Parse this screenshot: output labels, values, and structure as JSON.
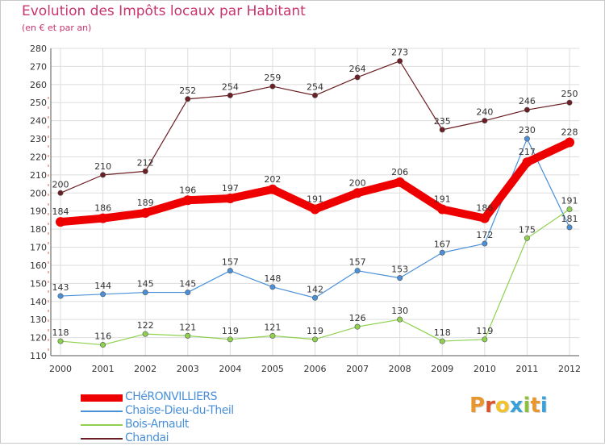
{
  "title": "Evolution des Impôts locaux par Habitant",
  "subtitle": "(en € et par an)",
  "logo": {
    "text": "Proxiti",
    "colors": [
      "#e8962e",
      "#d9532b",
      "#f2c12e",
      "#3aa1d8",
      "#8bbf3c",
      "#e8962e",
      "#3aa1d8"
    ]
  },
  "chart_data": {
    "type": "line",
    "x": [
      "2000",
      "2001",
      "2002",
      "2003",
      "2004",
      "2005",
      "2006",
      "2007",
      "2008",
      "2009",
      "2010",
      "2011",
      "2012"
    ],
    "ylim": [
      110,
      280
    ],
    "yticks": [
      110,
      120,
      130,
      140,
      150,
      160,
      170,
      180,
      190,
      200,
      210,
      220,
      230,
      240,
      250,
      260,
      270,
      280
    ],
    "grid": true,
    "legend_position": "bottom-left",
    "series": [
      {
        "name": "Chandai",
        "color": "#6b1e24",
        "thick": false,
        "values": [
          200,
          210,
          212,
          252,
          254,
          259,
          254,
          264,
          273,
          235,
          240,
          246,
          250
        ]
      },
      {
        "name": "Chaise-Dieu-du-Theil",
        "color": "#4a90d9",
        "thick": false,
        "values": [
          143,
          144,
          145,
          145,
          157,
          148,
          142,
          157,
          153,
          167,
          172,
          230,
          181
        ]
      },
      {
        "name": "Bois-Arnault",
        "color": "#8fd14f",
        "thick": false,
        "values": [
          118,
          116,
          122,
          121,
          119,
          121,
          119,
          126,
          130,
          118,
          119,
          175,
          191
        ]
      },
      {
        "name": "CHéRONVILLIERS",
        "color": "#ee0000",
        "thick": true,
        "values": [
          184,
          186,
          189,
          196,
          197,
          202,
          191,
          200,
          206,
          191,
          186,
          217,
          228
        ]
      }
    ],
    "legend_order": [
      "CHéRONVILLIERS",
      "Chaise-Dieu-du-Theil",
      "Bois-Arnault",
      "Chandai"
    ]
  }
}
